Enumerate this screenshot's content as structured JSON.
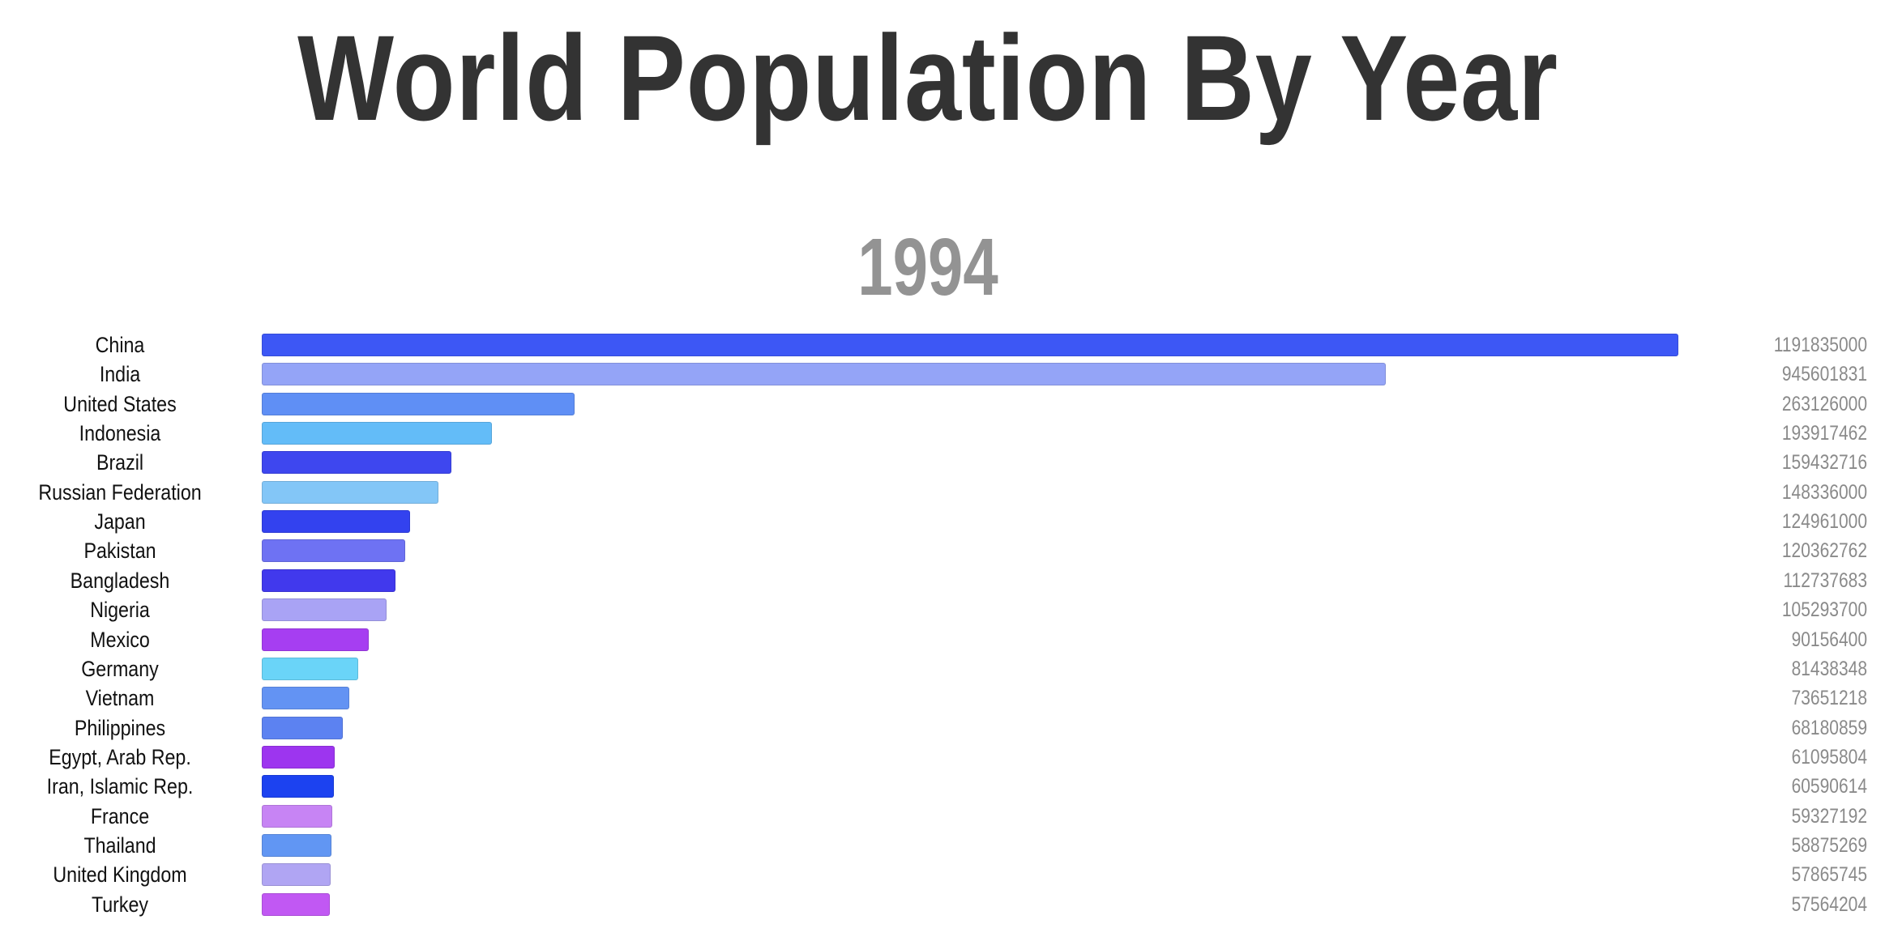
{
  "chart_data": {
    "type": "bar",
    "orientation": "horizontal",
    "title": "World Population By Year",
    "year": "1994",
    "categories": [
      "China",
      "India",
      "United States",
      "Indonesia",
      "Brazil",
      "Russian Federation",
      "Japan",
      "Pakistan",
      "Bangladesh",
      "Nigeria",
      "Mexico",
      "Germany",
      "Vietnam",
      "Philippines",
      "Egypt, Arab Rep.",
      "Iran, Islamic Rep.",
      "France",
      "Thailand",
      "United Kingdom",
      "Turkey"
    ],
    "values": [
      1191835000,
      945601831,
      263126000,
      193917462,
      159432716,
      148336000,
      124961000,
      120362762,
      112737683,
      105293700,
      90156400,
      81438348,
      73651218,
      68180859,
      61095804,
      60590614,
      59327192,
      58875269,
      57865745,
      57564204
    ],
    "colors": [
      "#3d57f5",
      "#94a4f7",
      "#5f8ff5",
      "#63bcf8",
      "#3e47ef",
      "#83c6f7",
      "#3342ef",
      "#6e72f3",
      "#4139ed",
      "#a9a3f5",
      "#a63ef1",
      "#6ad4f8",
      "#6393f3",
      "#5c82f1",
      "#9d35ef",
      "#1c42f0",
      "#c784f4",
      "#6196f3",
      "#b0a5f3",
      "#c158f3"
    ],
    "xlim": [
      0,
      1191835000
    ],
    "grid": false,
    "legend": "none"
  }
}
